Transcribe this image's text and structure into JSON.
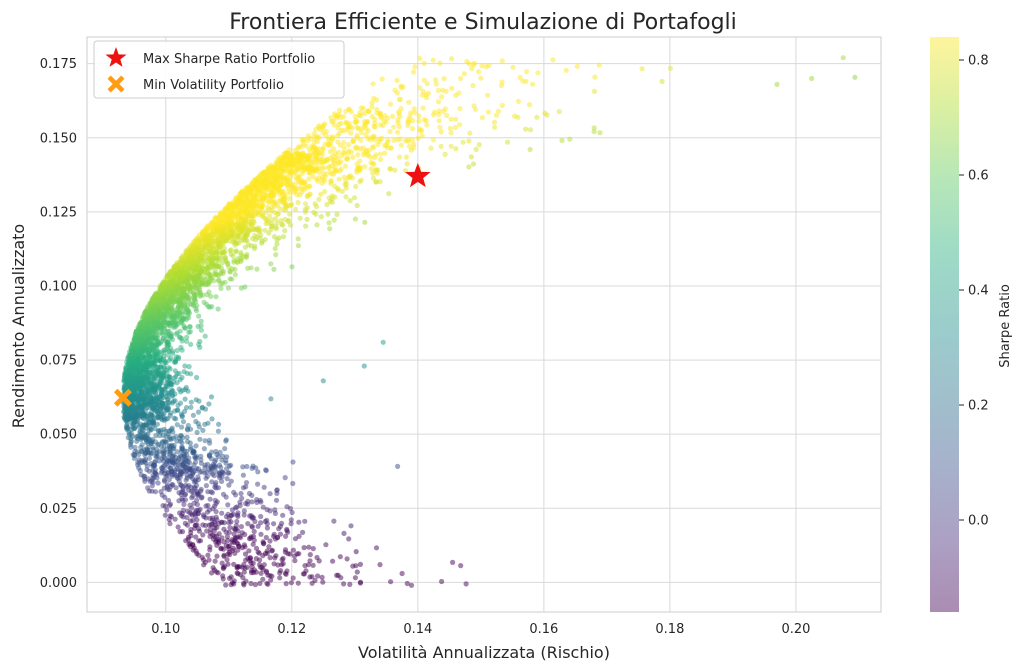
{
  "chart_data": {
    "type": "scatter",
    "title": "Frontiera Efficiente e Simulazione di Portafogli",
    "xlabel": "Volatilità Annualizzata (Rischio)",
    "ylabel": "Rendimento Annualizzato",
    "xlim": [
      0.0875,
      0.2135
    ],
    "ylim": [
      -0.01,
      0.184
    ],
    "x_ticks": [
      "0.10",
      "0.12",
      "0.14",
      "0.16",
      "0.18",
      "0.20"
    ],
    "x_tick_values": [
      0.1,
      0.12,
      0.14,
      0.16,
      0.18,
      0.2
    ],
    "y_ticks": [
      "0.000",
      "0.025",
      "0.050",
      "0.075",
      "0.100",
      "0.125",
      "0.150",
      "0.175"
    ],
    "y_tick_values": [
      0.0,
      0.025,
      0.05,
      0.075,
      0.1,
      0.125,
      0.15,
      0.175
    ],
    "grid": true,
    "legend_position": "top-left",
    "colormap": "viridis",
    "colorbar": {
      "label": "Sharpe Ratio",
      "range": [
        -0.16,
        0.84
      ],
      "ticks": [
        "0.0",
        "0.2",
        "0.4",
        "0.6",
        "0.8"
      ],
      "tick_values": [
        0.0,
        0.2,
        0.4,
        0.6,
        0.8
      ]
    },
    "special_points": [
      {
        "name": "Max Sharpe Ratio Portfolio",
        "marker": "star",
        "color": "#ee1111",
        "x": 0.14,
        "y": 0.137
      },
      {
        "name": "Min Volatility Portfolio",
        "marker": "x",
        "color": "#ff9c14",
        "x": 0.0932,
        "y": 0.0623
      }
    ],
    "scatter_description_points": [
      {
        "x": 0.2075,
        "y": 0.177
      },
      {
        "x": 0.2025,
        "y": 0.17
      },
      {
        "x": 0.197,
        "y": 0.168
      },
      {
        "x": 0.139,
        "y": -0.001
      },
      {
        "x": 0.1375,
        "y": 0.003
      },
      {
        "x": 0.134,
        "y": 0.006
      },
      {
        "x": 0.1345,
        "y": 0.081
      },
      {
        "x": 0.1315,
        "y": 0.073
      },
      {
        "x": 0.125,
        "y": 0.068
      }
    ]
  }
}
